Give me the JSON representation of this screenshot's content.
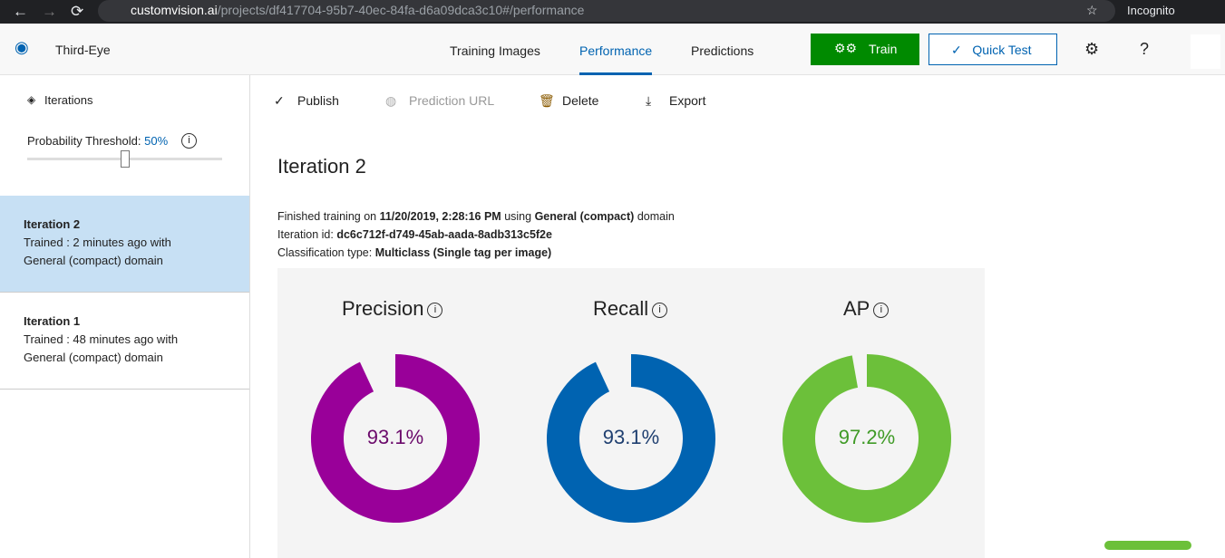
{
  "browser": {
    "url_host": "customvision.ai",
    "url_path": "/projects/df417704-95b7-40ec-84fa-d6a09dca3c10#/performance",
    "profile": "Incognito"
  },
  "header": {
    "project": "Third-Eye",
    "tabs": [
      "Training Images",
      "Performance",
      "Predictions"
    ],
    "train": "Train",
    "quick_test": "Quick Test",
    "help": "?"
  },
  "sidebar": {
    "iterations_label": "Iterations",
    "threshold_label": "Probability Threshold:",
    "threshold_value": "50%",
    "threshold_fraction": 0.5,
    "items": [
      {
        "title": "Iteration 2",
        "line1": "Trained : 2 minutes ago with",
        "line2": "General (compact) domain"
      },
      {
        "title": "Iteration 1",
        "line1": "Trained : 48 minutes ago with",
        "line2": "General (compact) domain"
      }
    ]
  },
  "toolbar": {
    "publish": "Publish",
    "prediction_url": "Prediction URL",
    "delete": "Delete",
    "export": "Export"
  },
  "main": {
    "title": "Iteration 2",
    "finished_prefix": "Finished training on",
    "finished_date": "11/20/2019, 2:28:16 PM",
    "using": "using",
    "domain": "General (compact)",
    "domain_suffix": "domain",
    "id_label": "Iteration id:",
    "id_value": "dc6c712f-d749-45ab-aada-8adb313c5f2e",
    "class_label": "Classification type:",
    "class_value": "Multiclass (Single tag per image)"
  },
  "metrics": [
    {
      "name": "Precision",
      "value": "93.1%",
      "fraction": 0.931,
      "color": "#990099",
      "text_color": "#6b0a6b"
    },
    {
      "name": "Recall",
      "value": "93.1%",
      "fraction": 0.931,
      "color": "#0063b1",
      "text_color": "#1f3f70"
    },
    {
      "name": "AP",
      "value": "97.2%",
      "fraction": 0.972,
      "color": "#6cc03a",
      "text_color": "#3f9a26"
    }
  ]
}
